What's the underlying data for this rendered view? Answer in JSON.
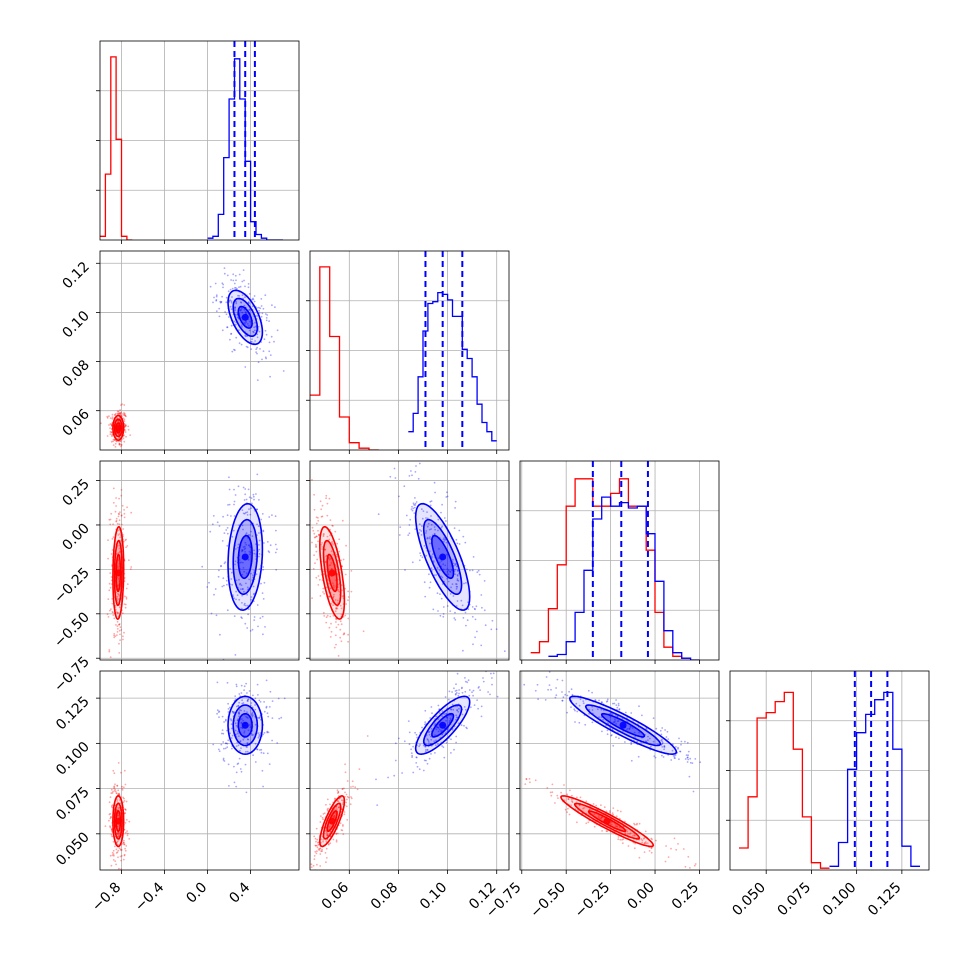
{
  "chart_data": {
    "type": "scatter",
    "title": "",
    "grid": true,
    "parameters": [
      {
        "ticks": [
          -0.8,
          -0.4,
          0.0,
          0.4
        ],
        "tick_labels": [
          "−0.8",
          "−0.4",
          "0.0",
          "0.4"
        ],
        "range": [
          -1.0,
          0.85
        ]
      },
      {
        "ticks": [
          0.06,
          0.08,
          0.1,
          0.12
        ],
        "tick_labels": [
          "0.06",
          "0.08",
          "0.10",
          "0.12"
        ],
        "range": [
          0.044,
          0.125
        ]
      },
      {
        "ticks": [
          -0.75,
          -0.5,
          -0.25,
          0.0,
          0.25
        ],
        "tick_labels": [
          "−0.75",
          "−0.50",
          "−0.25",
          "0.00",
          "0.25"
        ],
        "range": [
          -0.76,
          0.36
        ]
      },
      {
        "ticks": [
          0.05,
          0.075,
          0.1,
          0.125
        ],
        "tick_labels": [
          "0.050",
          "0.075",
          "0.100",
          "0.125"
        ],
        "range": [
          0.03,
          0.14
        ]
      }
    ],
    "series": [
      {
        "color": "#ff0000",
        "centers": [
          -0.83,
          0.053,
          -0.27,
          0.057
        ],
        "spreads": [
          0.025,
          0.0025,
          0.13,
          0.007
        ],
        "correlations": {
          "0-2": 0.1,
          "1-2": -0.6,
          "1-3": 0.8,
          "2-3": -0.95
        },
        "histograms": [
          {
            "edges": [
              -1.0,
              -0.95,
              -0.9,
              -0.85,
              -0.8,
              -0.75,
              -0.7
            ],
            "counts": [
              0.02,
              0.36,
              1.0,
              0.55,
              0.02,
              0.0
            ]
          },
          {
            "edges": [
              0.044,
              0.048,
              0.052,
              0.056,
              0.06,
              0.064,
              0.068,
              0.072
            ],
            "counts": [
              0.3,
              1.0,
              0.62,
              0.18,
              0.04,
              0.01,
              0.0
            ]
          },
          {
            "edges": [
              -0.7,
              -0.65,
              -0.6,
              -0.55,
              -0.5,
              -0.45,
              -0.4,
              -0.35,
              -0.3,
              -0.25,
              -0.2,
              -0.15,
              -0.1,
              -0.05,
              0.0,
              0.05,
              0.1,
              0.15,
              0.2
            ],
            "counts": [
              0.04,
              0.1,
              0.28,
              0.52,
              0.84,
              0.99,
              0.99,
              0.84,
              0.84,
              0.91,
              0.99,
              0.84,
              0.84,
              0.6,
              0.26,
              0.07,
              0.02,
              0.01
            ]
          },
          {
            "edges": [
              0.035,
              0.04,
              0.045,
              0.05,
              0.055,
              0.06,
              0.065,
              0.07,
              0.075,
              0.08,
              0.085
            ],
            "counts": [
              0.12,
              0.4,
              0.83,
              0.86,
              0.92,
              0.97,
              0.66,
              0.29,
              0.04,
              0.01
            ]
          }
        ]
      },
      {
        "color": "#0000ff",
        "centers": [
          0.35,
          0.098,
          -0.18,
          0.11
        ],
        "spreads": [
          0.08,
          0.0055,
          0.15,
          0.008
        ],
        "correlations": {
          "0-1": -0.55,
          "0-2": 0.15,
          "1-2": -0.75,
          "1-3": 0.8,
          "2-3": -0.92
        },
        "quantiles": [
          [
            0.25,
            0.35,
            0.44
          ],
          [
            0.091,
            0.098,
            0.106
          ],
          [
            -0.35,
            -0.19,
            -0.04
          ],
          [
            0.099,
            0.108,
            0.117
          ]
        ],
        "histograms": [
          {
            "edges": [
              0.0,
              0.05,
              0.1,
              0.15,
              0.2,
              0.25,
              0.3,
              0.35,
              0.4,
              0.45,
              0.5,
              0.55,
              0.6,
              0.65,
              0.7
            ],
            "counts": [
              0.01,
              0.02,
              0.14,
              0.45,
              0.77,
              0.99,
              0.77,
              0.43,
              0.1,
              0.03,
              0.01,
              0.0,
              0.0,
              0.0
            ]
          },
          {
            "edges": [
              0.084,
              0.086,
              0.088,
              0.09,
              0.092,
              0.094,
              0.096,
              0.098,
              0.1,
              0.102,
              0.104,
              0.106,
              0.108,
              0.11,
              0.112,
              0.114,
              0.116,
              0.118,
              0.12
            ],
            "counts": [
              0.1,
              0.2,
              0.4,
              0.65,
              0.8,
              0.81,
              0.86,
              0.85,
              0.82,
              0.73,
              0.73,
              0.55,
              0.5,
              0.4,
              0.25,
              0.15,
              0.1,
              0.05
            ]
          },
          {
            "edges": [
              -0.6,
              -0.55,
              -0.5,
              -0.45,
              -0.4,
              -0.35,
              -0.3,
              -0.25,
              -0.2,
              -0.15,
              -0.1,
              -0.05,
              0.0,
              0.05,
              0.1,
              0.15,
              0.2,
              0.25
            ],
            "counts": [
              0.02,
              0.03,
              0.1,
              0.26,
              0.49,
              0.77,
              0.89,
              0.84,
              0.86,
              0.83,
              0.84,
              0.69,
              0.43,
              0.16,
              0.04,
              0.01,
              0.0
            ]
          },
          {
            "edges": [
              0.085,
              0.09,
              0.095,
              0.1,
              0.105,
              0.11,
              0.115,
              0.12,
              0.125,
              0.13,
              0.135
            ],
            "counts": [
              0.02,
              0.15,
              0.55,
              0.75,
              0.85,
              0.93,
              0.97,
              0.66,
              0.13,
              0.02
            ]
          }
        ]
      }
    ]
  }
}
